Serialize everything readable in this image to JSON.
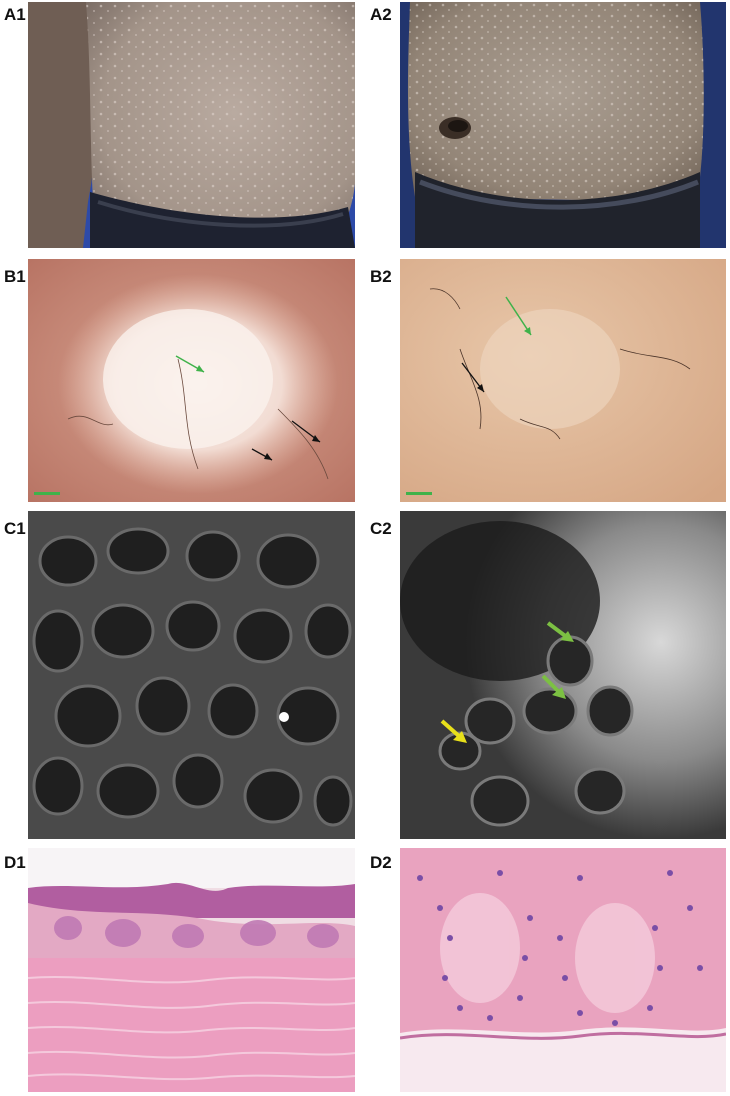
{
  "figure": {
    "panels": [
      {
        "label": "A1",
        "subject": "clinical photo, trunk with scattered hypopigmented macules"
      },
      {
        "label": "A2",
        "subject": "clinical photo, abdomen with scattered hypopigmented macules"
      },
      {
        "label": "B1",
        "subject": "dermoscopy, white structureless area with hairs"
      },
      {
        "label": "B2",
        "subject": "dermoscopy, pinkish-tan background with hairs"
      },
      {
        "label": "C1",
        "subject": "reflectance confocal microscopy, dermal papillae rings"
      },
      {
        "label": "C2",
        "subject": "reflectance confocal microscopy, bright cells with arrows"
      },
      {
        "label": "D1",
        "subject": "histology H&E, low magnification"
      },
      {
        "label": "D2",
        "subject": "histology H&E, high magnification"
      }
    ],
    "arrow_colors": {
      "green": "#3fb24a",
      "black": "#111111",
      "yellow": "#e8e01a",
      "lightgreen": "#7cc043"
    }
  }
}
